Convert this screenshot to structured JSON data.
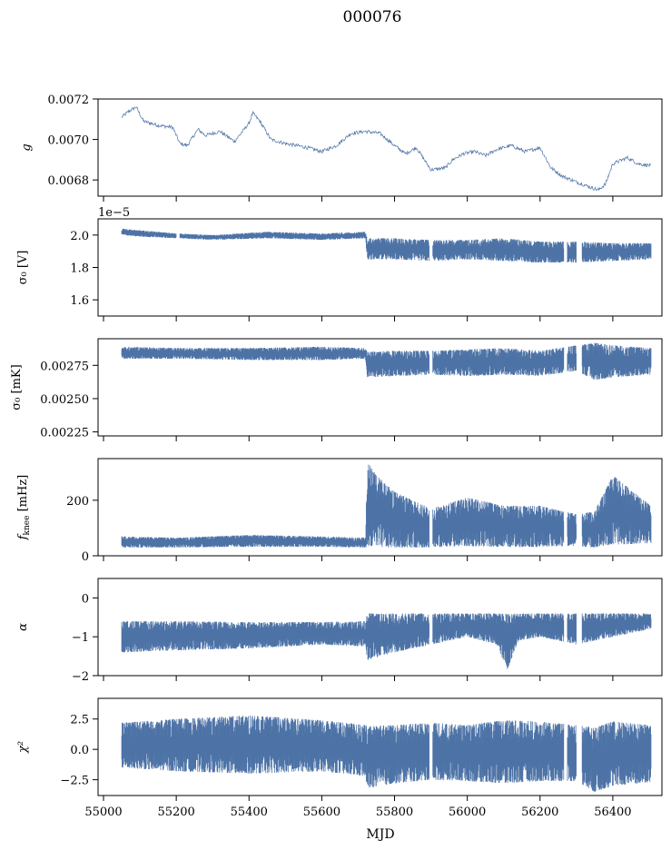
{
  "figure": {
    "title": "000076",
    "xlabel": "MJD",
    "series_color": "#4c72a6"
  },
  "chart_data": [
    {
      "type": "line",
      "ylabel": "g",
      "xlim": [
        54985,
        56535
      ],
      "ylim": [
        0.00672,
        0.0072
      ],
      "xticks": [
        55000,
        55200,
        55400,
        55600,
        55800,
        56000,
        56200,
        56400
      ],
      "yticks": [
        0.0068,
        0.007,
        0.0072
      ],
      "ytick_labels": [
        "0.0068",
        "0.0070",
        "0.0072"
      ],
      "x_range": [
        55050,
        56505
      ],
      "series": [
        {
          "x": [
            55050,
            55070,
            55090,
            55110,
            55150,
            55190,
            55210,
            55230,
            55260,
            55280,
            55320,
            55360,
            55400,
            55410,
            55430,
            55460,
            55500,
            55560,
            55600,
            55640,
            55680,
            55720,
            55760,
            55800,
            55830,
            55860,
            55900,
            55940,
            55960,
            55990,
            56020,
            56050,
            56080,
            56120,
            56160,
            56200,
            56230,
            56260,
            56300,
            56330,
            56360,
            56380,
            56400,
            56440,
            56470,
            56505
          ],
          "y": [
            0.00711,
            0.00714,
            0.00716,
            0.00709,
            0.00707,
            0.00706,
            0.00698,
            0.00697,
            0.00705,
            0.00702,
            0.00704,
            0.00699,
            0.00708,
            0.00713,
            0.00709,
            0.007,
            0.00698,
            0.00696,
            0.00694,
            0.00697,
            0.00703,
            0.00704,
            0.00703,
            0.00697,
            0.00693,
            0.00696,
            0.00685,
            0.00686,
            0.0069,
            0.00693,
            0.00694,
            0.00692,
            0.00695,
            0.00697,
            0.00694,
            0.00696,
            0.00686,
            0.00682,
            0.00679,
            0.00677,
            0.00675,
            0.00678,
            0.00688,
            0.00691,
            0.00688,
            0.00687
          ]
        }
      ]
    },
    {
      "type": "area",
      "ylabel": "σ₀ [V]",
      "offset_text": "1e−5",
      "xlim": [
        54985,
        56535
      ],
      "ylim": [
        1.5,
        2.1
      ],
      "xticks": [
        55000,
        55200,
        55400,
        55600,
        55800,
        56000,
        56200,
        56400
      ],
      "yticks": [
        1.6,
        1.8,
        2.0
      ],
      "ytick_labels": [
        "1.6",
        "1.8",
        "2.0"
      ],
      "x_range": [
        55050,
        56505
      ],
      "gaps": [
        [
          55200,
          55210
        ],
        [
          55895,
          55905
        ],
        [
          56265,
          56275
        ],
        [
          56300,
          56315
        ]
      ],
      "band": {
        "x": [
          55050,
          55100,
          55200,
          55300,
          55450,
          55600,
          55720,
          55725,
          55800,
          55900,
          56000,
          56100,
          56200,
          56300,
          56400,
          56505
        ],
        "upper": [
          2.04,
          2.03,
          2.01,
          2.0,
          2.02,
          2.01,
          2.02,
          1.98,
          1.98,
          1.97,
          1.97,
          1.98,
          1.96,
          1.96,
          1.95,
          1.95
        ],
        "lower": [
          2.0,
          1.99,
          1.98,
          1.97,
          1.98,
          1.97,
          1.98,
          1.85,
          1.85,
          1.84,
          1.85,
          1.84,
          1.83,
          1.83,
          1.84,
          1.85
        ]
      }
    },
    {
      "type": "area",
      "ylabel": "σ₀ [mK]",
      "xlim": [
        54985,
        56535
      ],
      "ylim": [
        0.00222,
        0.00295
      ],
      "xticks": [
        55000,
        55200,
        55400,
        55600,
        55800,
        56000,
        56200,
        56400
      ],
      "yticks": [
        0.00225,
        0.0025,
        0.00275
      ],
      "ytick_labels": [
        "0.00225",
        "0.00250",
        "0.00275"
      ],
      "x_range": [
        55050,
        56505
      ],
      "gaps": [
        [
          55895,
          55905
        ],
        [
          56265,
          56275
        ],
        [
          56300,
          56315
        ]
      ],
      "band": {
        "x": [
          55050,
          55200,
          55400,
          55600,
          55720,
          55725,
          55800,
          55900,
          56000,
          56100,
          56200,
          56300,
          56350,
          56400,
          56505
        ],
        "upper": [
          0.00289,
          0.00288,
          0.00288,
          0.00289,
          0.00288,
          0.00285,
          0.00286,
          0.00286,
          0.00287,
          0.00288,
          0.00286,
          0.0029,
          0.00292,
          0.0029,
          0.00288
        ],
        "lower": [
          0.0028,
          0.0028,
          0.00279,
          0.00279,
          0.0028,
          0.00266,
          0.00267,
          0.00268,
          0.00267,
          0.00268,
          0.00267,
          0.00271,
          0.00264,
          0.00266,
          0.00268
        ]
      }
    },
    {
      "type": "area",
      "ylabel": "f_knee [mHz]",
      "xlim": [
        54985,
        56535
      ],
      "ylim": [
        0,
        350
      ],
      "xticks": [
        55000,
        55200,
        55400,
        55600,
        55800,
        56000,
        56200,
        56400
      ],
      "yticks": [
        0,
        200
      ],
      "ytick_labels": [
        "0",
        "200"
      ],
      "x_range": [
        55050,
        56505
      ],
      "gaps": [
        [
          55895,
          55905
        ],
        [
          56265,
          56275
        ],
        [
          56300,
          56315
        ]
      ],
      "band": {
        "x": [
          55050,
          55200,
          55400,
          55600,
          55720,
          55725,
          55750,
          55800,
          55900,
          56000,
          56100,
          56200,
          56300,
          56350,
          56400,
          56505
        ],
        "upper": [
          70,
          65,
          75,
          70,
          65,
          340,
          290,
          230,
          170,
          210,
          180,
          180,
          150,
          160,
          290,
          180
        ],
        "lower": [
          30,
          30,
          32,
          32,
          30,
          30,
          32,
          30,
          30,
          35,
          32,
          32,
          35,
          30,
          40,
          45
        ]
      }
    },
    {
      "type": "area",
      "ylabel": "α",
      "xlim": [
        54985,
        56535
      ],
      "ylim": [
        -2,
        0.5
      ],
      "xticks": [
        55000,
        55200,
        55400,
        55600,
        55800,
        56000,
        56200,
        56400
      ],
      "yticks": [
        -2,
        -1,
        0
      ],
      "ytick_labels": [
        "−2",
        "−1",
        "0"
      ],
      "x_range": [
        55050,
        56505
      ],
      "gaps": [
        [
          55895,
          55905
        ],
        [
          56265,
          56275
        ],
        [
          56300,
          56315
        ]
      ],
      "band": {
        "x": [
          55050,
          55200,
          55400,
          55600,
          55720,
          55725,
          55800,
          55900,
          56000,
          56080,
          56110,
          56140,
          56200,
          56300,
          56400,
          56505
        ],
        "upper": [
          -0.6,
          -0.6,
          -0.62,
          -0.62,
          -0.6,
          -0.4,
          -0.4,
          -0.4,
          -0.4,
          -0.4,
          -0.4,
          -0.4,
          -0.4,
          -0.4,
          -0.4,
          -0.4
        ],
        "lower": [
          -1.4,
          -1.35,
          -1.3,
          -1.2,
          -1.25,
          -1.6,
          -1.4,
          -1.2,
          -1.0,
          -1.2,
          -1.85,
          -1.1,
          -1.0,
          -1.2,
          -1.0,
          -0.8
        ]
      }
    },
    {
      "type": "area",
      "ylabel": "χ²",
      "xlim": [
        54985,
        56535
      ],
      "ylim": [
        -3.8,
        4.2
      ],
      "xticks": [
        55000,
        55200,
        55400,
        55600,
        55800,
        56000,
        56200,
        56400
      ],
      "yticks": [
        -2.5,
        0.0,
        2.5
      ],
      "ytick_labels": [
        "−2.5",
        "0.0",
        "2.5"
      ],
      "x_range": [
        55050,
        56505
      ],
      "gaps": [
        [
          55895,
          55905
        ],
        [
          56265,
          56275
        ],
        [
          56300,
          56315
        ]
      ],
      "band": {
        "x": [
          55050,
          55200,
          55400,
          55600,
          55720,
          55725,
          55800,
          55900,
          56000,
          56100,
          56200,
          56300,
          56350,
          56400,
          56505
        ],
        "upper": [
          2.2,
          2.5,
          2.8,
          2.4,
          2.0,
          1.9,
          2.0,
          2.2,
          2.0,
          2.4,
          2.3,
          2.0,
          1.8,
          2.3,
          2.0
        ],
        "lower": [
          -1.5,
          -1.8,
          -2.0,
          -1.8,
          -2.2,
          -3.2,
          -2.8,
          -2.5,
          -2.6,
          -2.8,
          -2.6,
          -2.6,
          -3.5,
          -3.0,
          -2.7
        ]
      }
    }
  ]
}
